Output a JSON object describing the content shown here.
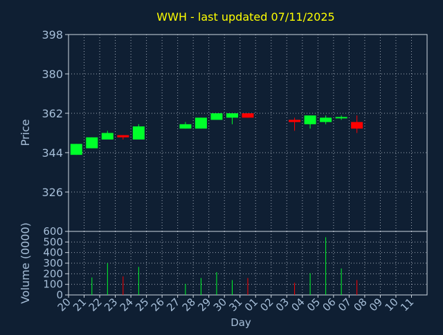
{
  "title": "WWH - last updated 07/11/2025",
  "colors": {
    "background": "#0f1f33",
    "title": "#ffff00",
    "axis_text": "#a7bfd9",
    "frame": "#cfd8e3",
    "grid": "#c8d0dc",
    "up": "#00ff2a",
    "down": "#ff0000"
  },
  "chart_data": [
    {
      "type": "candlestick",
      "ylabel": "Price",
      "ylim": [
        308,
        398
      ],
      "yticks": [
        398,
        380,
        362,
        344,
        326
      ],
      "grid": true,
      "x_categories": [
        "20",
        "21",
        "22",
        "23",
        "24",
        "25",
        "26",
        "27",
        "28",
        "29",
        "30",
        "31",
        "01",
        "02",
        "03",
        "04",
        "05",
        "06",
        "07",
        "08",
        "09",
        "10",
        "11"
      ],
      "candles": [
        {
          "x": "20",
          "open": 343,
          "close": 348,
          "high": 348,
          "low": 343,
          "direction": "up"
        },
        {
          "x": "21",
          "open": 346,
          "close": 351,
          "high": 351,
          "low": 346,
          "direction": "up"
        },
        {
          "x": "22",
          "open": 350,
          "close": 353,
          "high": 354,
          "low": 350,
          "direction": "up"
        },
        {
          "x": "23",
          "open": 352,
          "close": 351,
          "high": 352,
          "low": 350,
          "direction": "down"
        },
        {
          "x": "24",
          "open": 350,
          "close": 356,
          "high": 357,
          "low": 350,
          "direction": "up"
        },
        {
          "x": "27",
          "open": 355,
          "close": 357,
          "high": 358,
          "low": 355,
          "direction": "up"
        },
        {
          "x": "28",
          "open": 355,
          "close": 360,
          "high": 360,
          "low": 355,
          "direction": "up"
        },
        {
          "x": "29",
          "open": 359,
          "close": 362,
          "high": 362,
          "low": 359,
          "direction": "up"
        },
        {
          "x": "30",
          "open": 360,
          "close": 362,
          "high": 362,
          "low": 357,
          "direction": "up"
        },
        {
          "x": "31",
          "open": 362,
          "close": 360,
          "high": 362,
          "low": 360,
          "direction": "down"
        },
        {
          "x": "03",
          "open": 359,
          "close": 358,
          "high": 360,
          "low": 354,
          "direction": "down"
        },
        {
          "x": "04",
          "open": 357,
          "close": 361,
          "high": 361,
          "low": 355,
          "direction": "up"
        },
        {
          "x": "05",
          "open": 358,
          "close": 360,
          "high": 361,
          "low": 357,
          "direction": "up"
        },
        {
          "x": "06",
          "open": 359.8,
          "close": 360.3,
          "high": 361,
          "low": 359,
          "direction": "up"
        },
        {
          "x": "07",
          "open": 358,
          "close": 355,
          "high": 361,
          "low": 353,
          "direction": "down"
        }
      ]
    },
    {
      "type": "bar",
      "ylabel": "Volume (0000)",
      "xlabel": "Day",
      "ylim": [
        0,
        600
      ],
      "yticks": [
        0,
        100,
        200,
        300,
        400,
        500,
        600
      ],
      "grid": true,
      "categories": [
        "20",
        "21",
        "22",
        "23",
        "24",
        "25",
        "26",
        "27",
        "28",
        "29",
        "30",
        "31",
        "01",
        "02",
        "03",
        "04",
        "05",
        "06",
        "07",
        "08",
        "09",
        "10",
        "11"
      ],
      "bars": [
        {
          "x": "20",
          "value": 0,
          "direction": "up"
        },
        {
          "x": "21",
          "value": 165,
          "direction": "up"
        },
        {
          "x": "22",
          "value": 300,
          "direction": "up"
        },
        {
          "x": "23",
          "value": 175,
          "direction": "down"
        },
        {
          "x": "24",
          "value": 265,
          "direction": "up"
        },
        {
          "x": "27",
          "value": 105,
          "direction": "up"
        },
        {
          "x": "28",
          "value": 160,
          "direction": "up"
        },
        {
          "x": "29",
          "value": 215,
          "direction": "up"
        },
        {
          "x": "30",
          "value": 140,
          "direction": "up"
        },
        {
          "x": "31",
          "value": 160,
          "direction": "down"
        },
        {
          "x": "03",
          "value": 115,
          "direction": "down"
        },
        {
          "x": "04",
          "value": 205,
          "direction": "up"
        },
        {
          "x": "05",
          "value": 545,
          "direction": "up"
        },
        {
          "x": "06",
          "value": 250,
          "direction": "up"
        },
        {
          "x": "07",
          "value": 140,
          "direction": "down"
        }
      ]
    }
  ]
}
